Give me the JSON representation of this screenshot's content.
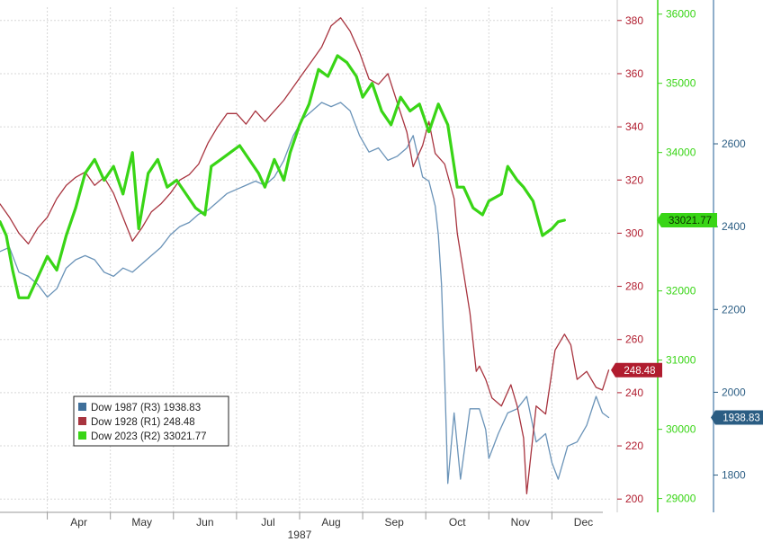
{
  "chart_data": {
    "type": "line",
    "title": "",
    "xlabel": "1987",
    "x_months": [
      "Apr",
      "May",
      "Jun",
      "Jul",
      "Aug",
      "Sep",
      "Oct",
      "Nov",
      "Dec"
    ],
    "x_range_months": [
      3.25,
      12.95
    ],
    "grid": true,
    "legend_position": "bottom-left",
    "axes": [
      {
        "id": "R1",
        "range": [
          195,
          385
        ],
        "ticks": [
          200,
          220,
          240,
          260,
          280,
          300,
          320,
          340,
          360,
          380
        ],
        "color": "#b01c2e"
      },
      {
        "id": "R2",
        "range": [
          28800,
          36100
        ],
        "ticks": [
          29000,
          30000,
          31000,
          32000,
          33000,
          34000,
          35000,
          36000
        ],
        "color": "#39d516"
      },
      {
        "id": "R3",
        "range": [
          1710,
          2930
        ],
        "ticks": [
          1800,
          2000,
          2200,
          2400,
          2600
        ],
        "color": "#2b5d83"
      }
    ],
    "series": [
      {
        "name": "Dow 1987 (R3)",
        "last_label": "1938.83",
        "axis": "R3",
        "color": "#6a93b8",
        "badge_bg": "#2b5d83",
        "points": [
          [
            3.25,
            2340
          ],
          [
            3.4,
            2350
          ],
          [
            3.55,
            2290
          ],
          [
            3.7,
            2280
          ],
          [
            3.85,
            2260
          ],
          [
            4.0,
            2230
          ],
          [
            4.15,
            2250
          ],
          [
            4.3,
            2300
          ],
          [
            4.45,
            2320
          ],
          [
            4.6,
            2330
          ],
          [
            4.75,
            2320
          ],
          [
            4.9,
            2290
          ],
          [
            5.05,
            2280
          ],
          [
            5.2,
            2300
          ],
          [
            5.35,
            2290
          ],
          [
            5.5,
            2310
          ],
          [
            5.65,
            2330
          ],
          [
            5.8,
            2350
          ],
          [
            5.95,
            2380
          ],
          [
            6.1,
            2400
          ],
          [
            6.25,
            2410
          ],
          [
            6.4,
            2430
          ],
          [
            6.55,
            2440
          ],
          [
            6.7,
            2460
          ],
          [
            6.85,
            2480
          ],
          [
            7.0,
            2490
          ],
          [
            7.15,
            2500
          ],
          [
            7.3,
            2510
          ],
          [
            7.45,
            2500
          ],
          [
            7.6,
            2520
          ],
          [
            7.75,
            2560
          ],
          [
            7.9,
            2620
          ],
          [
            8.05,
            2660
          ],
          [
            8.2,
            2680
          ],
          [
            8.35,
            2700
          ],
          [
            8.5,
            2690
          ],
          [
            8.65,
            2700
          ],
          [
            8.8,
            2680
          ],
          [
            8.95,
            2620
          ],
          [
            9.1,
            2580
          ],
          [
            9.25,
            2590
          ],
          [
            9.4,
            2560
          ],
          [
            9.55,
            2570
          ],
          [
            9.7,
            2590
          ],
          [
            9.8,
            2620
          ],
          [
            9.95,
            2520
          ],
          [
            10.05,
            2510
          ],
          [
            10.15,
            2450
          ],
          [
            10.2,
            2380
          ],
          [
            10.25,
            2260
          ],
          [
            10.3,
            2040
          ],
          [
            10.35,
            1780
          ],
          [
            10.45,
            1950
          ],
          [
            10.55,
            1790
          ],
          [
            10.7,
            1960
          ],
          [
            10.85,
            1960
          ],
          [
            10.95,
            1910
          ],
          [
            11.0,
            1840
          ],
          [
            11.15,
            1900
          ],
          [
            11.3,
            1950
          ],
          [
            11.45,
            1960
          ],
          [
            11.6,
            1990
          ],
          [
            11.75,
            1880
          ],
          [
            11.9,
            1900
          ],
          [
            12.0,
            1830
          ],
          [
            12.1,
            1790
          ],
          [
            12.25,
            1870
          ],
          [
            12.4,
            1880
          ],
          [
            12.55,
            1920
          ],
          [
            12.7,
            1990
          ],
          [
            12.8,
            1950
          ],
          [
            12.9,
            1939
          ]
        ]
      },
      {
        "name": "Dow 1928 (R1)",
        "last_label": "248.48",
        "axis": "R1",
        "color": "#a8343f",
        "badge_bg": "#b01c2e",
        "points": [
          [
            3.25,
            311
          ],
          [
            3.4,
            306
          ],
          [
            3.55,
            300
          ],
          [
            3.7,
            296
          ],
          [
            3.85,
            302
          ],
          [
            4.0,
            306
          ],
          [
            4.15,
            313
          ],
          [
            4.3,
            318
          ],
          [
            4.45,
            321
          ],
          [
            4.6,
            323
          ],
          [
            4.75,
            318
          ],
          [
            4.9,
            321
          ],
          [
            5.05,
            315
          ],
          [
            5.2,
            306
          ],
          [
            5.35,
            297
          ],
          [
            5.5,
            302
          ],
          [
            5.65,
            308
          ],
          [
            5.8,
            311
          ],
          [
            5.95,
            315
          ],
          [
            6.1,
            320
          ],
          [
            6.25,
            322
          ],
          [
            6.4,
            326
          ],
          [
            6.55,
            334
          ],
          [
            6.7,
            340
          ],
          [
            6.85,
            345
          ],
          [
            7.0,
            345
          ],
          [
            7.15,
            341
          ],
          [
            7.3,
            346
          ],
          [
            7.45,
            342
          ],
          [
            7.6,
            346
          ],
          [
            7.75,
            350
          ],
          [
            7.9,
            355
          ],
          [
            8.05,
            360
          ],
          [
            8.2,
            365
          ],
          [
            8.35,
            370
          ],
          [
            8.5,
            378
          ],
          [
            8.65,
            381
          ],
          [
            8.8,
            376
          ],
          [
            8.95,
            368
          ],
          [
            9.1,
            358
          ],
          [
            9.25,
            356
          ],
          [
            9.4,
            360
          ],
          [
            9.55,
            349
          ],
          [
            9.7,
            338
          ],
          [
            9.8,
            325
          ],
          [
            9.95,
            333
          ],
          [
            10.05,
            342
          ],
          [
            10.15,
            330
          ],
          [
            10.3,
            326
          ],
          [
            10.45,
            313
          ],
          [
            10.5,
            300
          ],
          [
            10.6,
            285
          ],
          [
            10.7,
            270
          ],
          [
            10.8,
            248
          ],
          [
            10.85,
            250
          ],
          [
            10.95,
            245
          ],
          [
            11.05,
            238
          ],
          [
            11.2,
            235
          ],
          [
            11.35,
            243
          ],
          [
            11.45,
            235
          ],
          [
            11.55,
            223
          ],
          [
            11.6,
            202
          ],
          [
            11.75,
            235
          ],
          [
            11.9,
            232
          ],
          [
            12.05,
            256
          ],
          [
            12.2,
            262
          ],
          [
            12.3,
            258
          ],
          [
            12.4,
            245
          ],
          [
            12.55,
            248
          ],
          [
            12.7,
            242
          ],
          [
            12.8,
            241
          ],
          [
            12.9,
            248.48
          ]
        ]
      },
      {
        "name": "Dow 2023 (R2)",
        "last_label": "33021.77",
        "axis": "R2",
        "color": "#39d516",
        "badge_bg": "#39d516",
        "points": [
          [
            3.25,
            33000
          ],
          [
            3.35,
            32800
          ],
          [
            3.45,
            32300
          ],
          [
            3.55,
            31900
          ],
          [
            3.7,
            31900
          ],
          [
            3.85,
            32200
          ],
          [
            4.0,
            32500
          ],
          [
            4.15,
            32300
          ],
          [
            4.3,
            32800
          ],
          [
            4.45,
            33200
          ],
          [
            4.6,
            33700
          ],
          [
            4.75,
            33900
          ],
          [
            4.9,
            33600
          ],
          [
            5.05,
            33800
          ],
          [
            5.2,
            33400
          ],
          [
            5.35,
            34000
          ],
          [
            5.45,
            32900
          ],
          [
            5.6,
            33700
          ],
          [
            5.75,
            33900
          ],
          [
            5.9,
            33500
          ],
          [
            6.05,
            33600
          ],
          [
            6.2,
            33400
          ],
          [
            6.35,
            33200
          ],
          [
            6.5,
            33100
          ],
          [
            6.6,
            33800
          ],
          [
            6.75,
            33900
          ],
          [
            6.9,
            34000
          ],
          [
            7.05,
            34100
          ],
          [
            7.2,
            33900
          ],
          [
            7.35,
            33700
          ],
          [
            7.45,
            33500
          ],
          [
            7.6,
            33900
          ],
          [
            7.75,
            33600
          ],
          [
            7.85,
            34000
          ],
          [
            8.0,
            34400
          ],
          [
            8.15,
            34700
          ],
          [
            8.3,
            35200
          ],
          [
            8.45,
            35100
          ],
          [
            8.6,
            35400
          ],
          [
            8.75,
            35300
          ],
          [
            8.9,
            35100
          ],
          [
            9.0,
            34800
          ],
          [
            9.15,
            35000
          ],
          [
            9.3,
            34600
          ],
          [
            9.45,
            34400
          ],
          [
            9.6,
            34800
          ],
          [
            9.75,
            34600
          ],
          [
            9.9,
            34700
          ],
          [
            10.05,
            34300
          ],
          [
            10.2,
            34700
          ],
          [
            10.35,
            34400
          ],
          [
            10.5,
            33500
          ],
          [
            10.6,
            33500
          ],
          [
            10.75,
            33200
          ],
          [
            10.9,
            33100
          ],
          [
            11.0,
            33300
          ],
          [
            11.2,
            33400
          ],
          [
            11.3,
            33800
          ],
          [
            11.45,
            33600
          ],
          [
            11.55,
            33500
          ],
          [
            11.7,
            33300
          ],
          [
            11.85,
            32800
          ],
          [
            12.0,
            32900
          ],
          [
            12.1,
            33000
          ],
          [
            12.2,
            33021.77
          ]
        ]
      }
    ]
  },
  "legend": {
    "items": [
      {
        "swatch": "#3f6f9a",
        "label": "Dow 1987 (R3) 1938.83"
      },
      {
        "swatch": "#a8343f",
        "label": "Dow 1928 (R1) 248.48"
      },
      {
        "swatch": "#39d516",
        "label": "Dow 2023 (R2) 33021.77"
      }
    ]
  }
}
